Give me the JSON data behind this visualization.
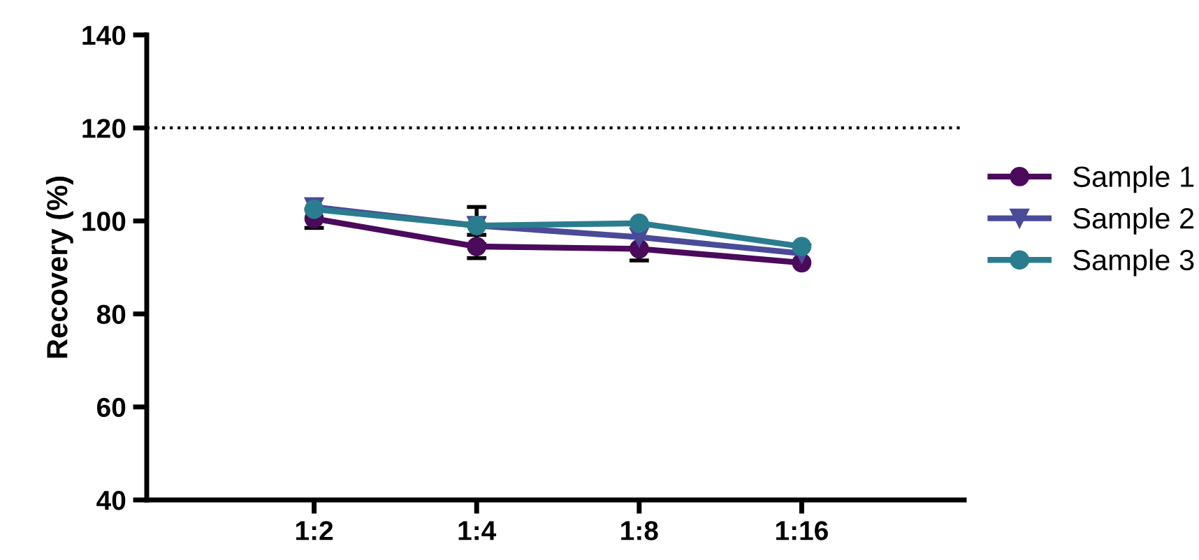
{
  "chart_data": {
    "type": "line",
    "ylabel": "Recovery (%)",
    "categories": [
      "1:2",
      "1:4",
      "1:8",
      "1:16"
    ],
    "series": [
      {
        "name": "Sample 1",
        "color": "#4b0a5c",
        "marker": "circle",
        "values": [
          100.5,
          94.5,
          94,
          91
        ],
        "errors": [
          2,
          2.5,
          2.5,
          null
        ]
      },
      {
        "name": "Sample 2",
        "color": "#4a4a98",
        "marker": "triangle",
        "values": [
          103,
          99,
          96.5,
          93
        ],
        "errors": [
          null,
          4,
          null,
          null
        ]
      },
      {
        "name": "Sample 3",
        "color": "#2a7d8e",
        "marker": "circle",
        "values": [
          102.5,
          99,
          99.5,
          94.5
        ]
      }
    ],
    "ylim": [
      40,
      140
    ],
    "yticks": [
      40,
      60,
      80,
      100,
      120,
      140
    ],
    "ref_lines": [
      {
        "axis": "y",
        "value": 120,
        "color": "#000000",
        "line_style": "dotted"
      }
    ],
    "grid": false,
    "legend": "right",
    "line_style": "solid"
  }
}
